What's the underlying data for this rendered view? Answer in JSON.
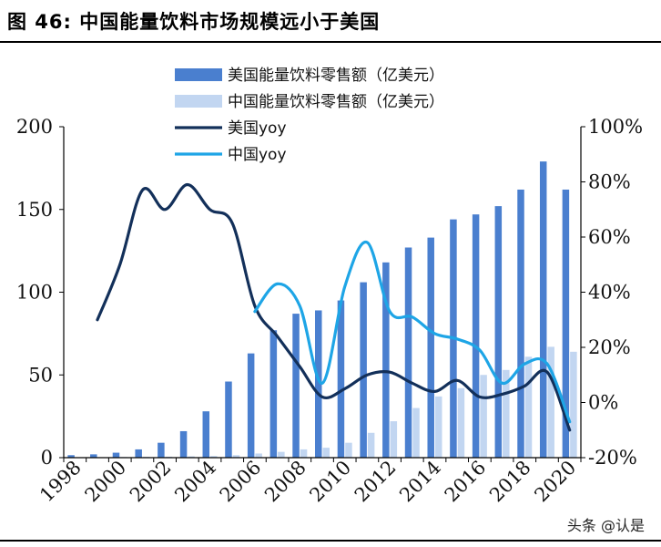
{
  "figure_title": "图 46:  中国能量饮料市场规模远小于美国",
  "watermark": "头条 @认是",
  "colors": {
    "us_bar": "#4a7fcf",
    "cn_bar": "#c2d6f1",
    "us_line": "#13305a",
    "cn_line": "#1ea5e6"
  },
  "chart_data": {
    "type": "bar",
    "title": "",
    "xlabel": "",
    "ylabel": "",
    "ylabel_right": "",
    "x_ticks": [
      "1998",
      "2000",
      "2002",
      "2004",
      "2006",
      "2008",
      "2010",
      "2012",
      "2014",
      "2016",
      "2018",
      "2020"
    ],
    "y_left_ticks": [
      "0",
      "50",
      "100",
      "150",
      "200"
    ],
    "y_right_ticks": [
      "-20%",
      "0%",
      "20%",
      "40%",
      "60%",
      "80%",
      "100%"
    ],
    "ylim_left": [
      0,
      200
    ],
    "ylim_right": [
      -20,
      100
    ],
    "grid": false,
    "legend_position": "top-center",
    "years": [
      1998,
      1999,
      2000,
      2001,
      2002,
      2003,
      2004,
      2005,
      2006,
      2007,
      2008,
      2009,
      2010,
      2011,
      2012,
      2013,
      2014,
      2015,
      2016,
      2017,
      2018,
      2019,
      2020
    ],
    "series": [
      {
        "name": "美国能量饮料零售额（亿美元）",
        "kind": "bar",
        "axis": "left",
        "values": [
          1.5,
          2,
          3,
          5,
          9,
          16,
          28,
          46,
          63,
          77,
          87,
          89,
          95,
          106,
          118,
          127,
          133,
          144,
          147,
          152,
          162,
          179,
          162
        ]
      },
      {
        "name": "中国能量饮料零售额（亿美元）",
        "kind": "bar",
        "axis": "left",
        "values": [
          0.2,
          0.3,
          0.4,
          0.5,
          0.6,
          0.8,
          1,
          1.5,
          2.5,
          3.5,
          5,
          6,
          9,
          15,
          22,
          30,
          37,
          42,
          50,
          53,
          61,
          67,
          64
        ]
      },
      {
        "name": "美国yoy",
        "kind": "line",
        "axis": "right",
        "values": [
          null,
          30,
          50,
          77,
          70,
          79,
          70,
          65,
          35,
          24,
          13,
          2,
          5,
          10,
          11,
          7,
          4,
          8,
          2,
          3,
          6,
          11,
          -10
        ]
      },
      {
        "name": "中国yoy",
        "kind": "line",
        "axis": "right",
        "values": [
          null,
          null,
          null,
          null,
          null,
          null,
          null,
          null,
          33,
          43,
          35,
          7,
          42,
          58,
          33,
          31,
          25,
          23,
          19,
          7,
          14,
          14,
          -7
        ]
      }
    ]
  }
}
